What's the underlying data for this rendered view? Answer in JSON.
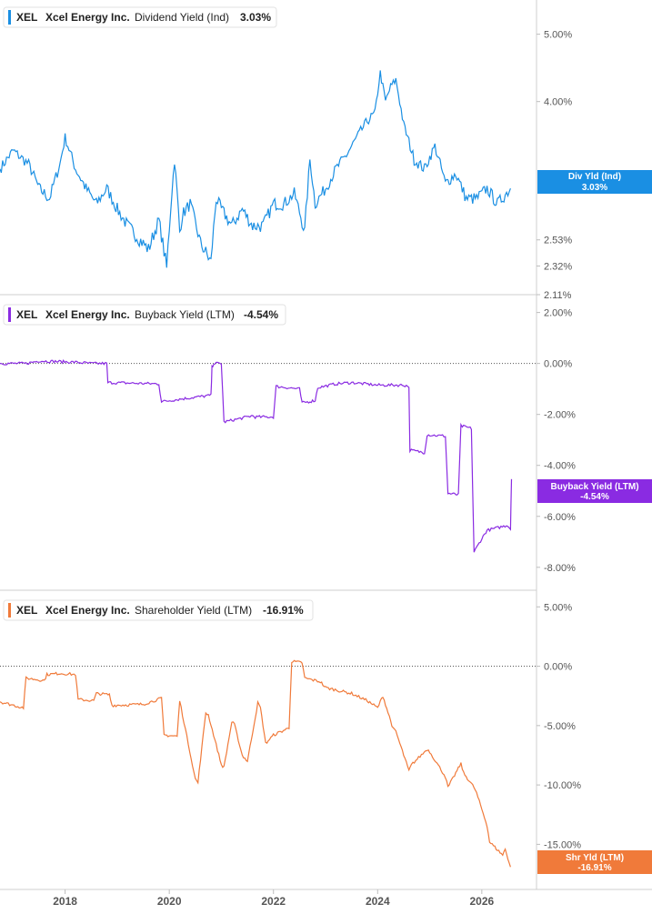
{
  "chart_data": [
    {
      "type": "line",
      "ticker": "XEL",
      "company": "Xcel Energy Inc.",
      "metric": "Dividend Yield (Ind)",
      "current_value": "3.03%",
      "badge_line1": "Div Yld (Ind)",
      "badge_line2": "3.03%",
      "color": "#1a8fe3",
      "scale": "log",
      "y_ticks": [
        "5.00%",
        "4.00%",
        "2.53%",
        "2.32%",
        "2.11%"
      ],
      "y_tick_values": [
        5.0,
        4.0,
        2.53,
        2.32,
        2.11
      ],
      "ylim": [
        2.11,
        5.6
      ],
      "series": [
        {
          "x": [
            2016.75,
            2017.0,
            2017.3,
            2017.5,
            2017.7,
            2017.9,
            2018.0,
            2018.2,
            2018.4,
            2018.6,
            2018.8,
            2019.0,
            2019.2,
            2019.4,
            2019.6,
            2019.8,
            2019.95,
            2020.1,
            2020.2,
            2020.25,
            2020.4,
            2020.6,
            2020.8,
            2020.9,
            2021.0,
            2021.2,
            2021.4,
            2021.6,
            2021.8,
            2022.0,
            2022.2,
            2022.4,
            2022.6,
            2022.7,
            2022.8,
            2023.0,
            2023.2,
            2023.4,
            2023.6,
            2023.8,
            2023.95,
            2024.05,
            2024.15,
            2024.25,
            2024.35,
            2024.5,
            2024.7,
            2024.9,
            2025.1,
            2025.3,
            2025.5,
            2025.7,
            2025.9,
            2026.1,
            2026.3,
            2026.55
          ],
          "y": [
            3.2,
            3.4,
            3.25,
            3.0,
            2.9,
            3.25,
            3.55,
            3.2,
            3.0,
            2.85,
            3.0,
            2.8,
            2.65,
            2.55,
            2.45,
            2.7,
            2.3,
            3.3,
            2.6,
            2.75,
            2.85,
            2.5,
            2.35,
            2.9,
            2.8,
            2.65,
            2.8,
            2.65,
            2.65,
            2.85,
            2.85,
            2.95,
            2.6,
            3.3,
            2.85,
            3.0,
            3.2,
            3.35,
            3.55,
            3.75,
            3.85,
            4.4,
            4.0,
            4.2,
            4.3,
            3.7,
            3.3,
            3.2,
            3.45,
            3.05,
            3.15,
            2.9,
            2.9,
            3.0,
            2.85,
            3.0
          ]
        }
      ]
    },
    {
      "type": "line",
      "ticker": "XEL",
      "company": "Xcel Energy Inc.",
      "metric": "Buyback Yield (LTM)",
      "current_value": "-4.54%",
      "badge_line1": "Buyback Yield (LTM)",
      "badge_line2": "-4.54%",
      "color": "#8a2be2",
      "y_ticks": [
        "2.00%",
        "0.00%",
        "-2.00%",
        "-4.00%",
        "-6.00%",
        "-8.00%"
      ],
      "y_tick_values": [
        2,
        0,
        -2,
        -4,
        -6,
        -8
      ],
      "ylim": [
        -8.9,
        2.7
      ],
      "series": [
        {
          "x": [
            2016.75,
            2017.25,
            2017.5,
            2018.2,
            2018.5,
            2018.8,
            2018.82,
            2019.8,
            2019.85,
            2020.2,
            2020.8,
            2020.82,
            2020.85,
            2021.0,
            2021.05,
            2021.6,
            2021.65,
            2022.0,
            2022.05,
            2022.5,
            2022.55,
            2022.8,
            2022.85,
            2023.2,
            2023.5,
            2024.0,
            2024.5,
            2024.6,
            2024.62,
            2024.9,
            2024.95,
            2025.3,
            2025.35,
            2025.55,
            2025.6,
            2025.8,
            2025.85,
            2026.05,
            2026.1,
            2026.5,
            2026.55,
            2026.57
          ],
          "y": [
            0.0,
            0.0,
            0.1,
            0.05,
            0.0,
            0.0,
            -0.75,
            -0.8,
            -1.5,
            -1.4,
            -1.25,
            -0.15,
            0.0,
            0.0,
            -2.3,
            -2.05,
            -2.1,
            -2.1,
            -0.9,
            -1.0,
            -1.55,
            -1.45,
            -0.95,
            -0.8,
            -0.75,
            -0.85,
            -0.85,
            -0.9,
            -3.4,
            -3.5,
            -2.8,
            -2.85,
            -5.1,
            -5.15,
            -2.45,
            -2.55,
            -7.4,
            -6.7,
            -6.55,
            -6.35,
            -6.5,
            -4.54
          ]
        }
      ]
    },
    {
      "type": "line",
      "ticker": "XEL",
      "company": "Xcel Energy Inc.",
      "metric": "Shareholder Yield (LTM)",
      "current_value": "-16.91%",
      "badge_line1": "Shr Yld (LTM)",
      "badge_line2": "-16.91%",
      "color": "#f07a3a",
      "y_ticks": [
        "5.00%",
        "0.00%",
        "-5.00%",
        "-10.00%",
        "-15.00%"
      ],
      "y_tick_values": [
        5,
        0,
        -5,
        -10,
        -15
      ],
      "ylim": [
        -18.8,
        6.4
      ],
      "series": [
        {
          "x": [
            2016.75,
            2017.2,
            2017.25,
            2017.6,
            2017.65,
            2017.9,
            2018.2,
            2018.25,
            2018.55,
            2018.6,
            2018.85,
            2018.9,
            2019.5,
            2019.85,
            2019.9,
            2020.15,
            2020.2,
            2020.5,
            2020.55,
            2020.7,
            2020.75,
            2021.0,
            2021.05,
            2021.2,
            2021.25,
            2021.4,
            2021.5,
            2021.7,
            2021.75,
            2021.85,
            2022.0,
            2022.3,
            2022.35,
            2022.55,
            2022.6,
            2022.9,
            2023.0,
            2023.5,
            2023.8,
            2024.0,
            2024.1,
            2024.3,
            2024.35,
            2024.6,
            2024.65,
            2024.95,
            2025.0,
            2025.3,
            2025.35,
            2025.6,
            2025.65,
            2025.85,
            2025.9,
            2026.1,
            2026.15,
            2026.4,
            2026.45,
            2026.55
          ],
          "y": [
            -3.0,
            -3.5,
            -1.0,
            -1.2,
            -0.7,
            -0.6,
            -0.7,
            -2.8,
            -2.9,
            -2.3,
            -2.4,
            -3.3,
            -3.2,
            -2.7,
            -5.8,
            -5.9,
            -2.9,
            -9.5,
            -9.8,
            -3.9,
            -4.1,
            -8.3,
            -8.5,
            -4.7,
            -4.9,
            -7.5,
            -8.0,
            -3.1,
            -3.5,
            -6.5,
            -5.8,
            -5.2,
            0.4,
            0.3,
            -1.0,
            -1.3,
            -1.8,
            -2.3,
            -2.9,
            -3.5,
            -2.5,
            -5.3,
            -5.5,
            -8.8,
            -8.3,
            -7.0,
            -7.2,
            -9.3,
            -10.2,
            -8.2,
            -9.0,
            -10.2,
            -10.7,
            -13.4,
            -14.8,
            -15.9,
            -15.4,
            -16.91
          ]
        }
      ]
    }
  ],
  "x_axis": {
    "ticks": [
      "2018",
      "2020",
      "2022",
      "2024",
      "2026"
    ],
    "tick_values": [
      2018,
      2020,
      2022,
      2024,
      2026
    ],
    "xlim": [
      2016.75,
      2027.05
    ]
  }
}
